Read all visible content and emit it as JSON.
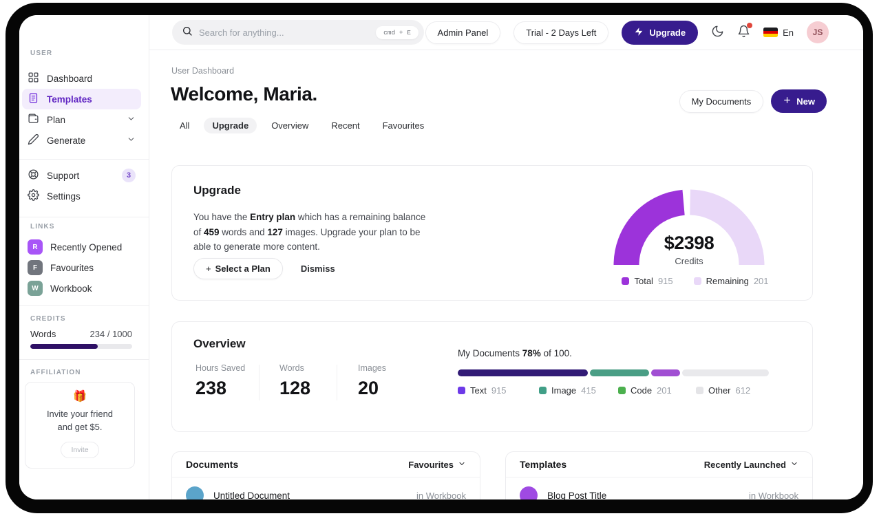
{
  "app": {
    "accent_color": "#371c8e",
    "frame_color": "#060606"
  },
  "topbar": {
    "search": {
      "placeholder": "Search for anything...",
      "shortcut": "cmd + E"
    },
    "admin_panel_label": "Admin Panel",
    "trial_label": "Trial - 2 Days Left",
    "upgrade_label": "Upgrade",
    "language_label": "En",
    "avatar_initials": "JS"
  },
  "sidebar": {
    "user_section_label": "USER",
    "nav": [
      {
        "label": "Dashboard"
      },
      {
        "label": "Templates"
      },
      {
        "label": "Plan"
      },
      {
        "label": "Generate"
      }
    ],
    "support_label": "Support",
    "support_badge": "3",
    "settings_label": "Settings",
    "links_section_label": "LINKS",
    "links": [
      {
        "initial": "R",
        "label": "Recently Opened",
        "color": "#a855f7"
      },
      {
        "initial": "F",
        "label": "Favourites",
        "color": "#71757d"
      },
      {
        "initial": "W",
        "label": "Workbook",
        "color": "#7aa297"
      }
    ],
    "credits_section_label": "CREDITS",
    "credits": {
      "label": "Words",
      "value": "234 / 1000",
      "fill_width": "66%",
      "fill_color": "#2e1065"
    },
    "affiliation_section_label": "AFFILIATION",
    "affiliation": {
      "emoji": "🎁",
      "line1": "Invite your friend",
      "line2": "and get $5.",
      "button_label": "Invite"
    }
  },
  "header": {
    "breadcrumb": "User Dashboard",
    "title": "Welcome, Maria.",
    "tabs": [
      "All",
      "Upgrade",
      "Overview",
      "Recent",
      "Favourites"
    ],
    "active_tab": "Upgrade",
    "my_documents_label": "My Documents",
    "new_label": "New"
  },
  "upgrade_card": {
    "title": "Upgrade",
    "body": {
      "p1": "You have the ",
      "b1": "Entry plan",
      "p2": " which has a remaining balance of ",
      "b2": "459",
      "p3": " words and ",
      "b3": "127",
      "p4": " images. Upgrade your plan to be able to generate more content."
    },
    "select_plan_label": "Select a Plan",
    "dismiss_label": "Dismiss"
  },
  "chart_data": [
    {
      "type": "gauge-donut",
      "title": "Credits",
      "center_value": "$2398",
      "center_label": "Credits",
      "legend_position": "bottom",
      "series": [
        {
          "name": "Total",
          "value": 915,
          "color": "#9c33da",
          "arc_degrees": [
            180,
            95
          ]
        },
        {
          "name": "Remaining",
          "value": 201,
          "color": "#e9d8f8",
          "arc_degrees": [
            89,
            0
          ]
        }
      ]
    },
    {
      "type": "stacked-bar",
      "title": "My Documents 78% of 100.",
      "percent_label": "78%",
      "total_label": "of 100.",
      "series": [
        {
          "name": "Text",
          "value": 915,
          "pct": 42.7,
          "bar_color": "#321b76",
          "legend_color": "#6d3ae8"
        },
        {
          "name": "Image",
          "value": 415,
          "pct": 19.4,
          "bar_color": "#4a9e85",
          "legend_color": "#419f87"
        },
        {
          "name": "Code",
          "value": 201,
          "pct": 9.4,
          "bar_color": "#a14fd3",
          "legend_color": "#4cb04e"
        },
        {
          "name": "Other",
          "value": 612,
          "pct": 28.5,
          "bar_color": "#e9e9ec",
          "legend_color": "#e4e4e7"
        }
      ]
    }
  ],
  "overview_card": {
    "title": "Overview",
    "stats": [
      {
        "label": "Hours Saved",
        "value": "238"
      },
      {
        "label": "Words",
        "value": "128"
      },
      {
        "label": "Images",
        "value": "20"
      }
    ],
    "progress_text": {
      "p1": "My Documents ",
      "b1": "78%",
      "p2": " of 100."
    }
  },
  "documents_panel": {
    "title": "Documents",
    "filter_label": "Favourites",
    "rows": [
      {
        "title": "Untitled Document",
        "location": "in Workbook",
        "avatar_color": "#5ba4ca"
      }
    ]
  },
  "templates_panel": {
    "title": "Templates",
    "filter_label": "Recently Launched",
    "rows": [
      {
        "title": "Blog Post Title",
        "location": "in Workbook",
        "avatar_color": "#9f4ae3"
      }
    ]
  }
}
